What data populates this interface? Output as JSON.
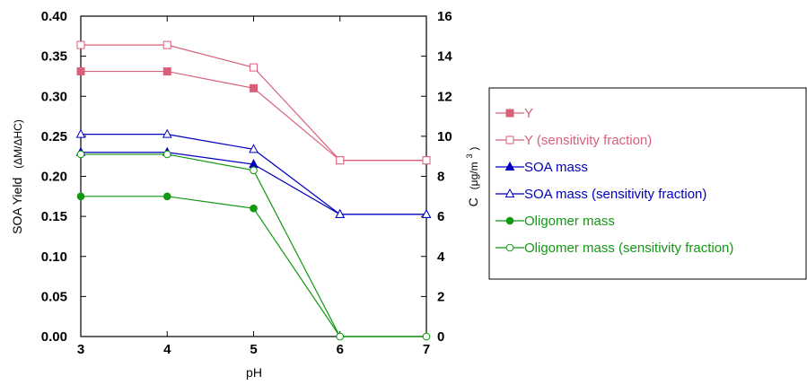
{
  "chart_data": {
    "type": "line",
    "title": "",
    "xlabel": "pH",
    "ylabel_left": "SOA Yield",
    "ylabel_left_unit": "(ΔM/ΔHC)",
    "ylabel_right": "C",
    "ylabel_right_unit": "(μg/m",
    "ylabel_right_unit_sup": "3",
    "ylabel_right_unit_close": ")",
    "x": [
      3,
      4,
      5,
      6,
      7
    ],
    "xlim": [
      3,
      7
    ],
    "ylim_left": [
      0,
      0.4
    ],
    "ylim_right": [
      0,
      16
    ],
    "x_ticks": [
      "3",
      "4",
      "5",
      "6",
      "7"
    ],
    "y_left_ticks": [
      "0.00",
      "0.05",
      "0.10",
      "0.15",
      "0.20",
      "0.25",
      "0.30",
      "0.35",
      "0.40"
    ],
    "y_right_ticks": [
      "0",
      "2",
      "4",
      "6",
      "8",
      "10",
      "12",
      "14",
      "16"
    ],
    "grid": false,
    "legend_position": "right",
    "series": [
      {
        "name": "Y",
        "axis": "left",
        "color": "#d9607a",
        "marker": "square",
        "filled": true,
        "values": [
          0.331,
          0.331,
          0.31,
          0.22,
          0.22
        ]
      },
      {
        "name": "Y (sensitivity fraction)",
        "axis": "left",
        "color": "#d9607a",
        "marker": "square",
        "filled": false,
        "values": [
          0.364,
          0.364,
          0.336,
          0.22,
          0.22
        ]
      },
      {
        "name": "SOA mass",
        "axis": "right",
        "color": "#0000c0",
        "marker": "triangle",
        "filled": true,
        "values": [
          9.2,
          9.2,
          8.6,
          6.1,
          6.1
        ]
      },
      {
        "name": "SOA mass (sensitivity fraction)",
        "axis": "right",
        "color": "#0000c0",
        "marker": "triangle",
        "filled": false,
        "values": [
          10.1,
          10.1,
          9.35,
          6.1,
          6.1
        ]
      },
      {
        "name": "Oligomer mass",
        "axis": "right",
        "color": "#119911",
        "marker": "circle",
        "filled": true,
        "values": [
          7.0,
          7.0,
          6.4,
          0.0,
          0.0
        ]
      },
      {
        "name": "Oligomer mass (sensitivity fraction)",
        "axis": "right",
        "color": "#119911",
        "marker": "circle",
        "filled": false,
        "values": [
          9.1,
          9.1,
          8.3,
          0.0,
          0.0
        ]
      }
    ]
  }
}
